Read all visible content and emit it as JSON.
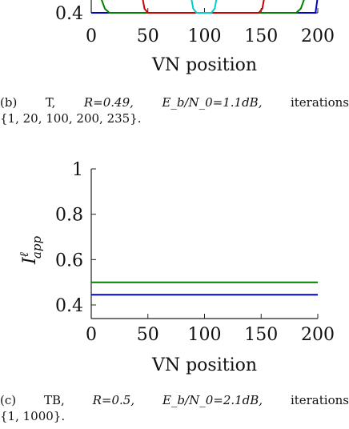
{
  "chart_data": [
    {
      "type": "line",
      "title": "",
      "xlabel": "VN position",
      "ylabel": "",
      "x_ticks": [
        "0",
        "50",
        "100",
        "150",
        "200"
      ],
      "y_ticks": [
        "0.4"
      ],
      "xlim": [
        0,
        200
      ],
      "ylim": [
        0.4,
        0.425
      ],
      "series": [
        {
          "color": "#0000cc",
          "x": [
            0,
            2,
            6,
            194,
            198,
            200
          ],
          "y": [
            0.4,
            0.4,
            0.4,
            0.4,
            0.4,
            0.42
          ]
        },
        {
          "color": "#008000",
          "x": [
            8,
            12,
            16,
            181,
            185,
            189
          ],
          "y": [
            0.42,
            0.405,
            0.4,
            0.4,
            0.405,
            0.42
          ]
        },
        {
          "color": "#cc0000",
          "x": [
            45,
            47,
            50,
            148,
            151,
            153
          ],
          "y": [
            0.42,
            0.405,
            0.4,
            0.4,
            0.405,
            0.42
          ]
        },
        {
          "color": "#00cccc",
          "x": [
            88,
            90,
            93,
            106,
            109,
            111
          ],
          "y": [
            0.42,
            0.405,
            0.4,
            0.4,
            0.405,
            0.42
          ]
        }
      ]
    },
    {
      "type": "line",
      "title": "",
      "xlabel": "VN position",
      "ylabel": "I^ℓ_app",
      "ylabel_main": "I",
      "ylabel_sup": "ℓ",
      "ylabel_sub": "app",
      "x_ticks": [
        "0",
        "50",
        "100",
        "150",
        "200"
      ],
      "y_ticks": [
        "0.4",
        "0.6",
        "0.8",
        "1"
      ],
      "xlim": [
        0,
        200
      ],
      "ylim": [
        0.34,
        1.0
      ],
      "series": [
        {
          "color": "#008000",
          "x": [
            0,
            200
          ],
          "y": [
            0.5,
            0.5
          ]
        },
        {
          "color": "#0000cc",
          "x": [
            0,
            200
          ],
          "y": [
            0.445,
            0.445
          ]
        }
      ]
    }
  ],
  "captions": {
    "b": {
      "label": "(b)",
      "scheme": "T,",
      "rate": "R=0.49,",
      "snr": "E_b/N_0=1.1dB,",
      "iter_word": "iterations",
      "iter_values": "{1, 20, 100, 200, 235}."
    },
    "c": {
      "label": "(c)",
      "scheme": "TB,",
      "rate": "R=0.5,",
      "snr": "E_b/N_0=2.1dB,",
      "iter_word": "iterations",
      "iter_values": "{1, 1000}."
    }
  }
}
